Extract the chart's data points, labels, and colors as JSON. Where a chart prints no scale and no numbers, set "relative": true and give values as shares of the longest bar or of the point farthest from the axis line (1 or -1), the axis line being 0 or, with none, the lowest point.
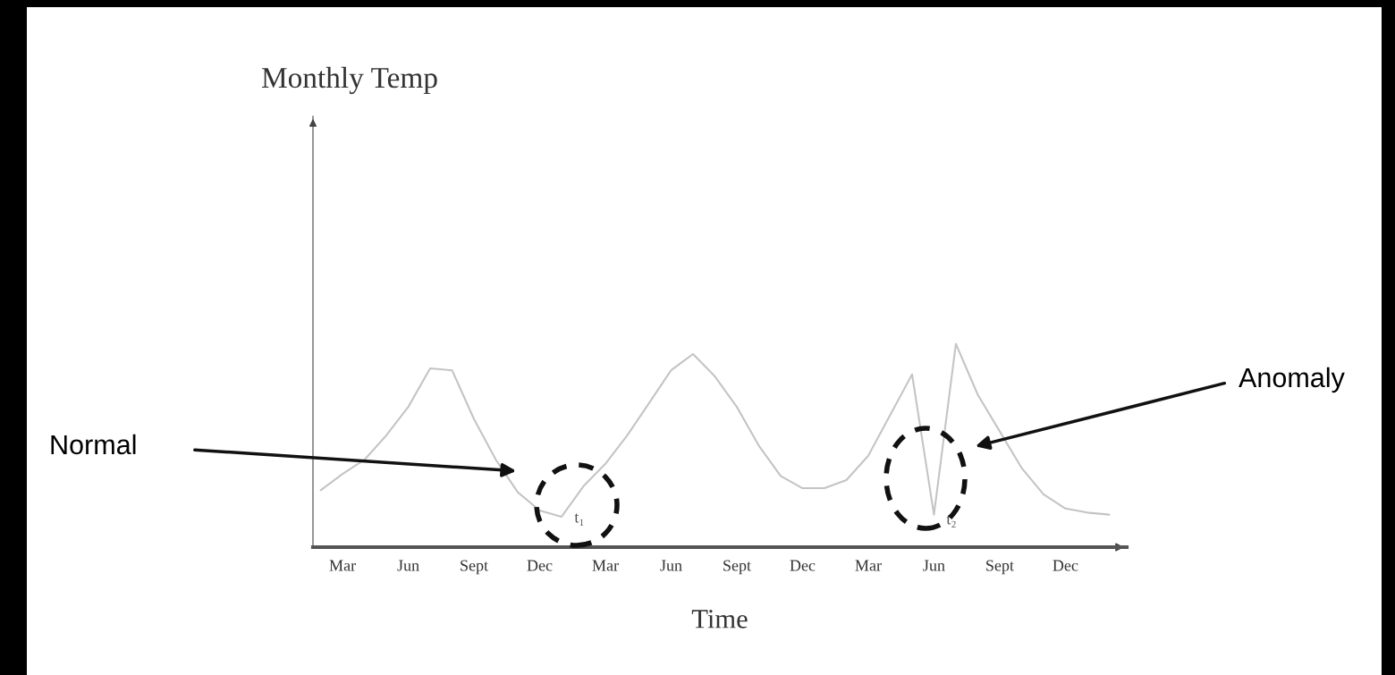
{
  "chart_data": {
    "type": "line",
    "relative": true,
    "xlabel": "Time",
    "categories": [
      null,
      "Mar",
      null,
      null,
      "Jun",
      null,
      null,
      "Sept",
      null,
      null,
      "Dec",
      null,
      null,
      "Mar",
      null,
      null,
      "Jun",
      null,
      null,
      "Sept",
      null,
      null,
      "Dec",
      null,
      null,
      "Mar",
      null,
      null,
      "Jun",
      null,
      null,
      "Sept",
      null,
      null,
      "Dec",
      null,
      null
    ],
    "series": [
      {
        "color": "#c4c4c4",
        "values": [
          0.28,
          0.36,
          0.43,
          0.55,
          0.69,
          0.88,
          0.87,
          0.63,
          0.43,
          0.27,
          0.18,
          0.15,
          0.3,
          0.41,
          0.55,
          0.71,
          0.87,
          0.95,
          0.84,
          0.69,
          0.5,
          0.35,
          0.29,
          0.29,
          0.33,
          0.45,
          0.65,
          0.85,
          0.16,
          1.0,
          0.75,
          0.57,
          0.39,
          0.26,
          0.19,
          0.17,
          0.16
        ]
      }
    ],
    "annotations": [
      "Normal",
      "Anomaly",
      "t₁",
      "t₂",
      "Monthly Temp"
    ],
    "grid": false,
    "line_style": "solid",
    "marker": "none"
  }
}
